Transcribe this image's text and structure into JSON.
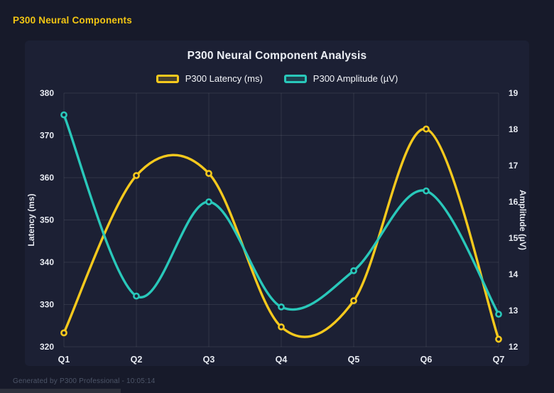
{
  "page": {
    "header_title": "P300 Neural Components",
    "footer_text": "Generated by P300 Professional - 10:05:14"
  },
  "chart": {
    "title": "P300 Neural Component Analysis"
  },
  "theme": {
    "background": "#171a2a",
    "card_background": "#1c2034",
    "header_color": "#f3c613",
    "grid_color": "rgba(255,255,255,0.09)",
    "text_color": "#e8ebf2",
    "footer_color": "#4d5568"
  },
  "chart_data": {
    "type": "line",
    "title": "P300 Neural Component Analysis",
    "categories": [
      "Q1",
      "Q2",
      "Q3",
      "Q4",
      "Q5",
      "Q6",
      "Q7"
    ],
    "series": [
      {
        "name": "P300 Latency (ms)",
        "yaxis": "left",
        "color": "#f6c91d",
        "values": [
          323.3,
          360.5,
          361.0,
          324.7,
          330.9,
          371.5,
          321.8
        ]
      },
      {
        "name": "P300 Amplitude (µV)",
        "yaxis": "right",
        "color": "#29c8ba",
        "values": [
          18.4,
          13.4,
          16.0,
          13.1,
          14.1,
          16.3,
          12.9
        ]
      }
    ],
    "left_axis": {
      "label": "Latency (ms)",
      "min": 320,
      "max": 380,
      "ticks": [
        320,
        330,
        340,
        350,
        360,
        370,
        380
      ]
    },
    "right_axis": {
      "label": "Amplitude (µV)",
      "min": 12,
      "max": 19,
      "ticks": [
        12,
        13,
        14,
        15,
        16,
        17,
        18,
        19
      ]
    },
    "grid": true,
    "smooth": true,
    "legend_position": "top"
  }
}
